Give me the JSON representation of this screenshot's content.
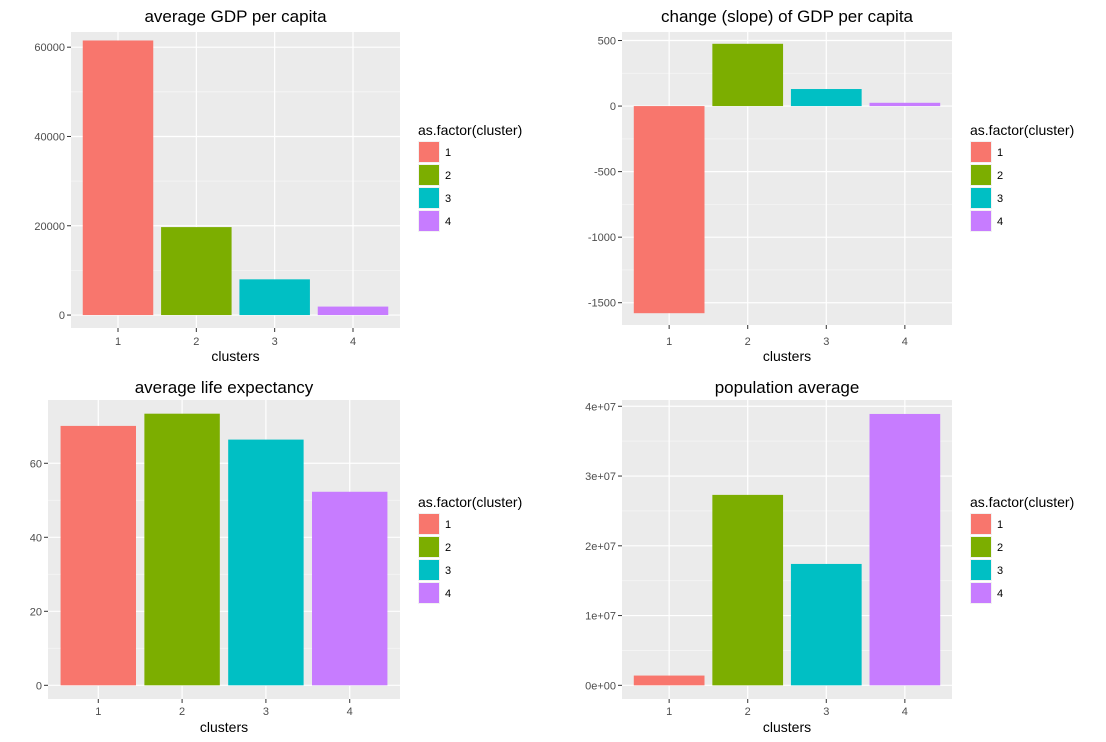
{
  "colors": {
    "panel_background": "#EBEBEB",
    "grid_major": "#FFFFFF",
    "grid_minor": "#F5F5F5",
    "tick_text": "#4D4D4D",
    "cluster_1": "#F8766D",
    "cluster_2": "#7CAE00",
    "cluster_3": "#00BFC4",
    "cluster_4": "#C77CFF"
  },
  "legend": {
    "title": "as.factor(cluster)",
    "entries": [
      {
        "label": "1",
        "color": "#F8766D"
      },
      {
        "label": "2",
        "color": "#7CAE00"
      },
      {
        "label": "3",
        "color": "#00BFC4"
      },
      {
        "label": "4",
        "color": "#C77CFF"
      }
    ]
  },
  "chart_data": [
    {
      "type": "bar",
      "title": "average GDP per capita",
      "xlabel": "clusters",
      "ylabel": "",
      "categories": [
        "1",
        "2",
        "3",
        "4"
      ],
      "values": [
        61500,
        19700,
        8000,
        1900
      ],
      "ylim": [
        -2900,
        63400
      ],
      "yticks": [
        0,
        20000,
        40000,
        60000
      ],
      "ytick_labels": [
        "0",
        "20000",
        "40000",
        "60000"
      ],
      "grid": true,
      "legend_position": "right"
    },
    {
      "type": "bar",
      "title": "change (slope) of GDP per capita",
      "xlabel": "clusters",
      "ylabel": "",
      "categories": [
        "1",
        "2",
        "3",
        "4"
      ],
      "values": [
        -1580,
        475,
        130,
        25
      ],
      "ylim": [
        -1670,
        565
      ],
      "yticks": [
        -1500,
        -1000,
        -500,
        0,
        500
      ],
      "ytick_labels": [
        "-1500",
        "-1000",
        "-500",
        "0",
        "500"
      ],
      "grid": true,
      "legend_position": "right"
    },
    {
      "type": "bar",
      "title": "average life expectancy",
      "xlabel": "clusters",
      "ylabel": "",
      "categories": [
        "1",
        "2",
        "3",
        "4"
      ],
      "values": [
        70.1,
        73.4,
        66.4,
        52.3
      ],
      "ylim": [
        -3.7,
        77.1
      ],
      "yticks": [
        0,
        20,
        40,
        60
      ],
      "ytick_labels": [
        "0",
        "20",
        "40",
        "60"
      ],
      "grid": true,
      "legend_position": "right"
    },
    {
      "type": "bar",
      "title": "population average",
      "xlabel": "clusters",
      "ylabel": "",
      "categories": [
        "1",
        "2",
        "3",
        "4"
      ],
      "values": [
        1400000,
        27300000,
        17400000,
        38900000
      ],
      "ylim": [
        -1960000,
        40900000
      ],
      "yticks": [
        0,
        10000000,
        20000000,
        30000000,
        40000000
      ],
      "ytick_labels": [
        "0e+00",
        "1e+07",
        "2e+07",
        "3e+07",
        "4e+07"
      ],
      "grid": true,
      "legend_position": "right"
    }
  ]
}
